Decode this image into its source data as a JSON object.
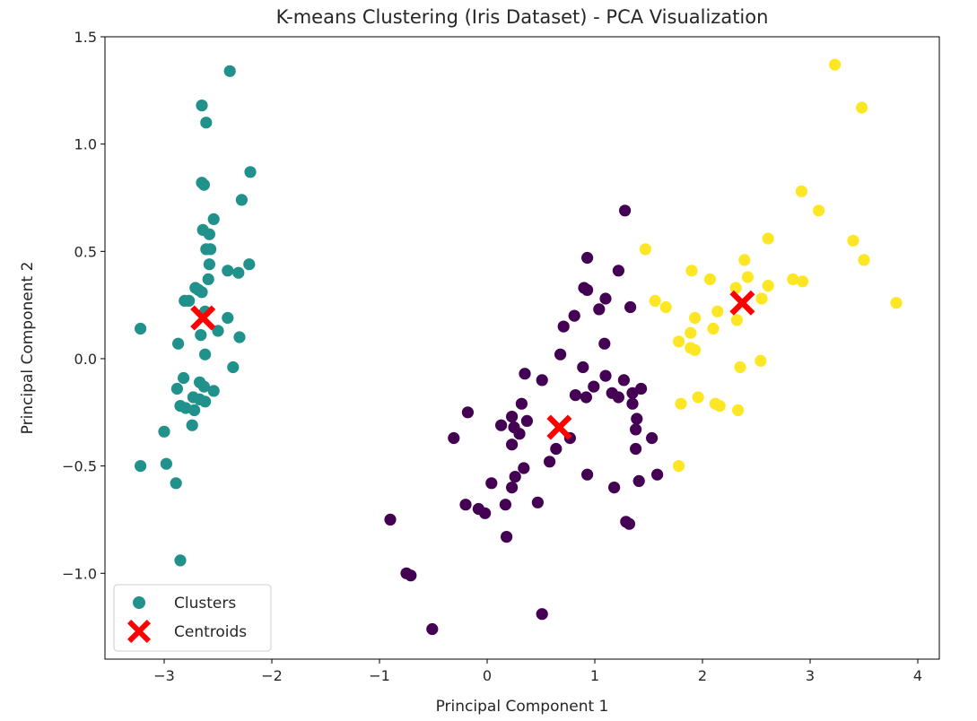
{
  "chart_data": {
    "type": "scatter",
    "title": "K-means Clustering (Iris Dataset) - PCA Visualization",
    "xlabel": "Principal Component 1",
    "ylabel": "Principal Component 2",
    "xlim": [
      -3.55,
      4.2
    ],
    "ylim": [
      -1.4,
      1.5
    ],
    "xticks": [
      -3,
      -2,
      -1,
      0,
      1,
      2,
      3,
      4
    ],
    "xtick_labels": [
      "−3",
      "−2",
      "−1",
      "0",
      "1",
      "2",
      "3",
      "4"
    ],
    "yticks": [
      -1.0,
      -0.5,
      0.0,
      0.5,
      1.0,
      1.5
    ],
    "ytick_labels": [
      "−1.0",
      "−0.5",
      "0.0",
      "0.5",
      "1.0",
      "1.5"
    ],
    "grid": false,
    "legend": {
      "position": "lower-left",
      "entries": [
        {
          "label": "Clusters",
          "marker": "circle",
          "color": "#21918c"
        },
        {
          "label": "Centroids",
          "marker": "x",
          "color": "#ff0000"
        }
      ]
    },
    "cluster_colors": [
      "#440154",
      "#21918c",
      "#fde725"
    ],
    "centroid_color": "#ff0000",
    "centroids": [
      {
        "x": 0.67,
        "y": -0.32
      },
      {
        "x": -2.64,
        "y": 0.19
      },
      {
        "x": 2.37,
        "y": 0.26
      }
    ],
    "points": [
      {
        "x": -2.39,
        "y": 1.34,
        "cluster": 1
      },
      {
        "x": -2.65,
        "y": 1.18,
        "cluster": 1
      },
      {
        "x": -2.61,
        "y": 1.1,
        "cluster": 1
      },
      {
        "x": -2.2,
        "y": 0.87,
        "cluster": 1
      },
      {
        "x": -2.65,
        "y": 0.82,
        "cluster": 1
      },
      {
        "x": -2.63,
        "y": 0.81,
        "cluster": 1
      },
      {
        "x": -2.28,
        "y": 0.74,
        "cluster": 1
      },
      {
        "x": -2.54,
        "y": 0.65,
        "cluster": 1
      },
      {
        "x": -2.64,
        "y": 0.6,
        "cluster": 1
      },
      {
        "x": -2.58,
        "y": 0.58,
        "cluster": 1
      },
      {
        "x": -2.61,
        "y": 0.51,
        "cluster": 1
      },
      {
        "x": -2.57,
        "y": 0.51,
        "cluster": 1
      },
      {
        "x": -2.58,
        "y": 0.44,
        "cluster": 1
      },
      {
        "x": -2.21,
        "y": 0.44,
        "cluster": 1
      },
      {
        "x": -2.41,
        "y": 0.41,
        "cluster": 1
      },
      {
        "x": -2.31,
        "y": 0.4,
        "cluster": 1
      },
      {
        "x": -2.59,
        "y": 0.37,
        "cluster": 1
      },
      {
        "x": -2.71,
        "y": 0.33,
        "cluster": 1
      },
      {
        "x": -2.68,
        "y": 0.32,
        "cluster": 1
      },
      {
        "x": -2.65,
        "y": 0.31,
        "cluster": 1
      },
      {
        "x": -2.81,
        "y": 0.27,
        "cluster": 1
      },
      {
        "x": -2.77,
        "y": 0.27,
        "cluster": 1
      },
      {
        "x": -2.62,
        "y": 0.22,
        "cluster": 1
      },
      {
        "x": -2.41,
        "y": 0.19,
        "cluster": 1
      },
      {
        "x": -3.22,
        "y": 0.14,
        "cluster": 1
      },
      {
        "x": -2.5,
        "y": 0.13,
        "cluster": 1
      },
      {
        "x": -2.66,
        "y": 0.11,
        "cluster": 1
      },
      {
        "x": -2.3,
        "y": 0.1,
        "cluster": 1
      },
      {
        "x": -2.87,
        "y": 0.07,
        "cluster": 1
      },
      {
        "x": -2.62,
        "y": 0.02,
        "cluster": 1
      },
      {
        "x": -2.36,
        "y": -0.04,
        "cluster": 1
      },
      {
        "x": -2.82,
        "y": -0.09,
        "cluster": 1
      },
      {
        "x": -2.67,
        "y": -0.11,
        "cluster": 1
      },
      {
        "x": -2.63,
        "y": -0.13,
        "cluster": 1
      },
      {
        "x": -2.88,
        "y": -0.14,
        "cluster": 1
      },
      {
        "x": -2.54,
        "y": -0.15,
        "cluster": 1
      },
      {
        "x": -2.73,
        "y": -0.18,
        "cluster": 1
      },
      {
        "x": -2.67,
        "y": -0.19,
        "cluster": 1
      },
      {
        "x": -2.62,
        "y": -0.2,
        "cluster": 1
      },
      {
        "x": -2.85,
        "y": -0.22,
        "cluster": 1
      },
      {
        "x": -2.8,
        "y": -0.23,
        "cluster": 1
      },
      {
        "x": -2.72,
        "y": -0.24,
        "cluster": 1
      },
      {
        "x": -2.74,
        "y": -0.31,
        "cluster": 1
      },
      {
        "x": -3.0,
        "y": -0.34,
        "cluster": 1
      },
      {
        "x": -2.98,
        "y": -0.49,
        "cluster": 1
      },
      {
        "x": -3.22,
        "y": -0.5,
        "cluster": 1
      },
      {
        "x": -2.89,
        "y": -0.58,
        "cluster": 1
      },
      {
        "x": -2.85,
        "y": -0.94,
        "cluster": 1
      },
      {
        "x": 1.28,
        "y": 0.69,
        "cluster": 0
      },
      {
        "x": 0.93,
        "y": 0.47,
        "cluster": 0
      },
      {
        "x": 1.22,
        "y": 0.41,
        "cluster": 0
      },
      {
        "x": 0.9,
        "y": 0.33,
        "cluster": 0
      },
      {
        "x": 0.93,
        "y": 0.32,
        "cluster": 0
      },
      {
        "x": 1.1,
        "y": 0.28,
        "cluster": 0
      },
      {
        "x": 1.33,
        "y": 0.24,
        "cluster": 0
      },
      {
        "x": 1.04,
        "y": 0.23,
        "cluster": 0
      },
      {
        "x": 0.81,
        "y": 0.2,
        "cluster": 0
      },
      {
        "x": 0.71,
        "y": 0.15,
        "cluster": 0
      },
      {
        "x": 0.68,
        "y": 0.02,
        "cluster": 0
      },
      {
        "x": 1.09,
        "y": 0.07,
        "cluster": 0
      },
      {
        "x": 0.89,
        "y": -0.04,
        "cluster": 0
      },
      {
        "x": 0.35,
        "y": -0.07,
        "cluster": 0
      },
      {
        "x": 1.1,
        "y": -0.08,
        "cluster": 0
      },
      {
        "x": 1.27,
        "y": -0.1,
        "cluster": 0
      },
      {
        "x": 0.51,
        "y": -0.1,
        "cluster": 0
      },
      {
        "x": 0.99,
        "y": -0.13,
        "cluster": 0
      },
      {
        "x": 1.43,
        "y": -0.14,
        "cluster": 0
      },
      {
        "x": 1.35,
        "y": -0.16,
        "cluster": 0
      },
      {
        "x": 1.16,
        "y": -0.16,
        "cluster": 0
      },
      {
        "x": 0.82,
        "y": -0.17,
        "cluster": 0
      },
      {
        "x": 0.92,
        "y": -0.18,
        "cluster": 0
      },
      {
        "x": 1.22,
        "y": -0.18,
        "cluster": 0
      },
      {
        "x": 1.35,
        "y": -0.21,
        "cluster": 0
      },
      {
        "x": 0.32,
        "y": -0.21,
        "cluster": 0
      },
      {
        "x": -0.18,
        "y": -0.25,
        "cluster": 0
      },
      {
        "x": 0.23,
        "y": -0.27,
        "cluster": 0
      },
      {
        "x": 1.39,
        "y": -0.28,
        "cluster": 0
      },
      {
        "x": 0.37,
        "y": -0.29,
        "cluster": 0
      },
      {
        "x": 0.13,
        "y": -0.31,
        "cluster": 0
      },
      {
        "x": 0.25,
        "y": -0.32,
        "cluster": 0
      },
      {
        "x": 0.3,
        "y": -0.35,
        "cluster": 0
      },
      {
        "x": 1.38,
        "y": -0.33,
        "cluster": 0
      },
      {
        "x": -0.31,
        "y": -0.37,
        "cluster": 0
      },
      {
        "x": 1.53,
        "y": -0.37,
        "cluster": 0
      },
      {
        "x": 0.77,
        "y": -0.37,
        "cluster": 0
      },
      {
        "x": 0.23,
        "y": -0.4,
        "cluster": 0
      },
      {
        "x": 0.64,
        "y": -0.42,
        "cluster": 0
      },
      {
        "x": 1.38,
        "y": -0.42,
        "cluster": 0
      },
      {
        "x": 0.58,
        "y": -0.48,
        "cluster": 0
      },
      {
        "x": 0.34,
        "y": -0.51,
        "cluster": 0
      },
      {
        "x": 1.58,
        "y": -0.54,
        "cluster": 0
      },
      {
        "x": 0.93,
        "y": -0.54,
        "cluster": 0
      },
      {
        "x": 0.26,
        "y": -0.55,
        "cluster": 0
      },
      {
        "x": 1.41,
        "y": -0.57,
        "cluster": 0
      },
      {
        "x": 0.04,
        "y": -0.58,
        "cluster": 0
      },
      {
        "x": 1.18,
        "y": -0.6,
        "cluster": 0
      },
      {
        "x": 0.23,
        "y": -0.6,
        "cluster": 0
      },
      {
        "x": 0.47,
        "y": -0.67,
        "cluster": 0
      },
      {
        "x": -0.2,
        "y": -0.68,
        "cluster": 0
      },
      {
        "x": 0.17,
        "y": -0.68,
        "cluster": 0
      },
      {
        "x": -0.08,
        "y": -0.7,
        "cluster": 0
      },
      {
        "x": -0.02,
        "y": -0.72,
        "cluster": 0
      },
      {
        "x": -0.9,
        "y": -0.75,
        "cluster": 0
      },
      {
        "x": 1.29,
        "y": -0.76,
        "cluster": 0
      },
      {
        "x": 1.32,
        "y": -0.77,
        "cluster": 0
      },
      {
        "x": 0.18,
        "y": -0.83,
        "cluster": 0
      },
      {
        "x": -0.75,
        "y": -1.0,
        "cluster": 0
      },
      {
        "x": -0.71,
        "y": -1.01,
        "cluster": 0
      },
      {
        "x": 0.51,
        "y": -1.19,
        "cluster": 0
      },
      {
        "x": -0.51,
        "y": -1.26,
        "cluster": 0
      },
      {
        "x": 3.23,
        "y": 1.37,
        "cluster": 2
      },
      {
        "x": 3.48,
        "y": 1.17,
        "cluster": 2
      },
      {
        "x": 2.92,
        "y": 0.78,
        "cluster": 2
      },
      {
        "x": 3.08,
        "y": 0.69,
        "cluster": 2
      },
      {
        "x": 2.61,
        "y": 0.56,
        "cluster": 2
      },
      {
        "x": 3.4,
        "y": 0.55,
        "cluster": 2
      },
      {
        "x": 1.47,
        "y": 0.51,
        "cluster": 2
      },
      {
        "x": 2.39,
        "y": 0.46,
        "cluster": 2
      },
      {
        "x": 3.5,
        "y": 0.46,
        "cluster": 2
      },
      {
        "x": 1.9,
        "y": 0.41,
        "cluster": 2
      },
      {
        "x": 2.07,
        "y": 0.37,
        "cluster": 2
      },
      {
        "x": 2.42,
        "y": 0.38,
        "cluster": 2
      },
      {
        "x": 2.84,
        "y": 0.37,
        "cluster": 2
      },
      {
        "x": 2.93,
        "y": 0.36,
        "cluster": 2
      },
      {
        "x": 2.61,
        "y": 0.34,
        "cluster": 2
      },
      {
        "x": 2.31,
        "y": 0.33,
        "cluster": 2
      },
      {
        "x": 2.55,
        "y": 0.28,
        "cluster": 2
      },
      {
        "x": 1.56,
        "y": 0.27,
        "cluster": 2
      },
      {
        "x": 3.8,
        "y": 0.26,
        "cluster": 2
      },
      {
        "x": 1.66,
        "y": 0.24,
        "cluster": 2
      },
      {
        "x": 2.14,
        "y": 0.22,
        "cluster": 2
      },
      {
        "x": 1.93,
        "y": 0.19,
        "cluster": 2
      },
      {
        "x": 2.32,
        "y": 0.18,
        "cluster": 2
      },
      {
        "x": 2.1,
        "y": 0.14,
        "cluster": 2
      },
      {
        "x": 1.89,
        "y": 0.12,
        "cluster": 2
      },
      {
        "x": 1.78,
        "y": 0.08,
        "cluster": 2
      },
      {
        "x": 1.89,
        "y": 0.05,
        "cluster": 2
      },
      {
        "x": 1.93,
        "y": 0.04,
        "cluster": 2
      },
      {
        "x": 2.54,
        "y": -0.01,
        "cluster": 2
      },
      {
        "x": 2.35,
        "y": -0.04,
        "cluster": 2
      },
      {
        "x": 1.96,
        "y": -0.18,
        "cluster": 2
      },
      {
        "x": 1.8,
        "y": -0.21,
        "cluster": 2
      },
      {
        "x": 2.12,
        "y": -0.21,
        "cluster": 2
      },
      {
        "x": 2.16,
        "y": -0.22,
        "cluster": 2
      },
      {
        "x": 2.33,
        "y": -0.24,
        "cluster": 2
      },
      {
        "x": 1.78,
        "y": -0.5,
        "cluster": 2
      }
    ]
  }
}
